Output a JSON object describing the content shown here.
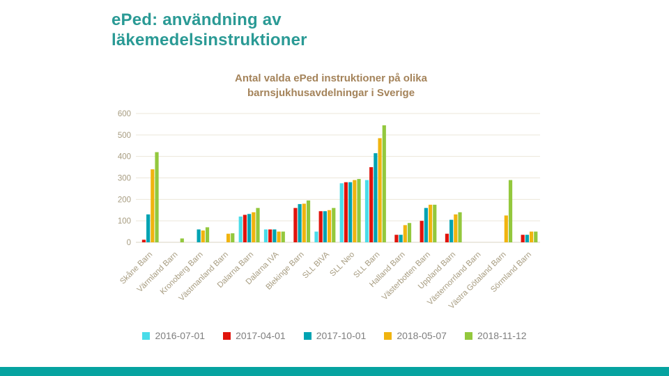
{
  "slide": {
    "title_line1": "ePed: användning av",
    "title_line2": "läkemedelsinstruktioner",
    "title_color": "#2a9a95",
    "accent_bar_color": "#06a3a0"
  },
  "chart_data": {
    "type": "bar",
    "title_line1": "Antal valda ePed instruktioner på olika",
    "title_line2": "barnsjukhusavdelningar i Sverige",
    "title_color": "#a4835a",
    "xlabel": "",
    "ylabel": "",
    "ylim": [
      0,
      600
    ],
    "yticks": [
      0,
      100,
      200,
      300,
      400,
      500,
      600
    ],
    "grid": true,
    "legend_position": "bottom",
    "axis_label_color": "#a79c80",
    "gridline_color": "#ece7da",
    "axisline_color": "#d9d3c0",
    "categories": [
      "Skåne Barn",
      "Värmland Barn",
      "Kronoberg Barn",
      "Västmanland Barn",
      "Dalarna Barn",
      "Dalarna IVA",
      "Blekinge Barn",
      "SLL BIVA",
      "SLL Neo",
      "SLL Barn",
      "Halland Barn",
      "Västerbotten Barn",
      "Uppland Barn",
      "Västernorrland Barn",
      "Västra Götaland Barn",
      "Sörmland Barn"
    ],
    "series": [
      {
        "name": "2016-07-01",
        "color": "#4adce9",
        "values": [
          0,
          0,
          0,
          0,
          120,
          60,
          0,
          50,
          275,
          290,
          0,
          0,
          0,
          0,
          0,
          0
        ]
      },
      {
        "name": "2017-04-01",
        "color": "#e0140c",
        "values": [
          12,
          0,
          0,
          0,
          128,
          60,
          160,
          145,
          280,
          350,
          35,
          100,
          40,
          0,
          0,
          35
        ]
      },
      {
        "name": "2017-10-01",
        "color": "#00a3b2",
        "values": [
          130,
          0,
          60,
          0,
          132,
          60,
          178,
          145,
          280,
          415,
          35,
          160,
          105,
          0,
          0,
          35
        ]
      },
      {
        "name": "2018-05-07",
        "color": "#f0b40f",
        "values": [
          340,
          0,
          55,
          40,
          140,
          50,
          180,
          150,
          290,
          485,
          80,
          175,
          130,
          0,
          125,
          50
        ]
      },
      {
        "name": "2018-11-12",
        "color": "#93c83d",
        "values": [
          420,
          18,
          70,
          42,
          160,
          50,
          195,
          160,
          295,
          545,
          90,
          175,
          140,
          0,
          290,
          50
        ]
      }
    ]
  }
}
